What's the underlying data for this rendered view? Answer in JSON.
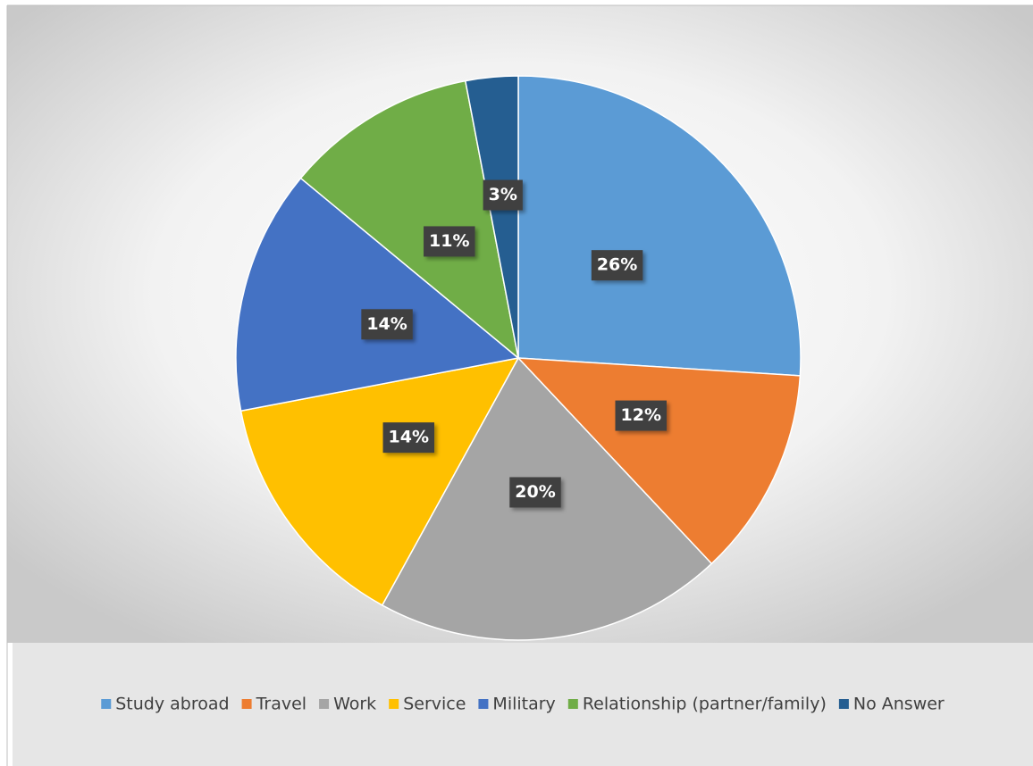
{
  "chart_data": {
    "type": "pie",
    "categories": [
      "Study abroad",
      "Travel",
      "Work",
      "Service",
      "Military",
      "Relationship (partner/family)",
      "No Answer"
    ],
    "values": [
      26,
      12,
      20,
      14,
      14,
      11,
      3
    ],
    "value_labels": [
      "26%",
      "12%",
      "20%",
      "14%",
      "14%",
      "11%",
      "3%"
    ],
    "colors": [
      "#5b9bd5",
      "#ed7d31",
      "#a5a5a5",
      "#ffc000",
      "#4472c4",
      "#70ad47",
      "#255e91"
    ],
    "legend": "bottom"
  }
}
